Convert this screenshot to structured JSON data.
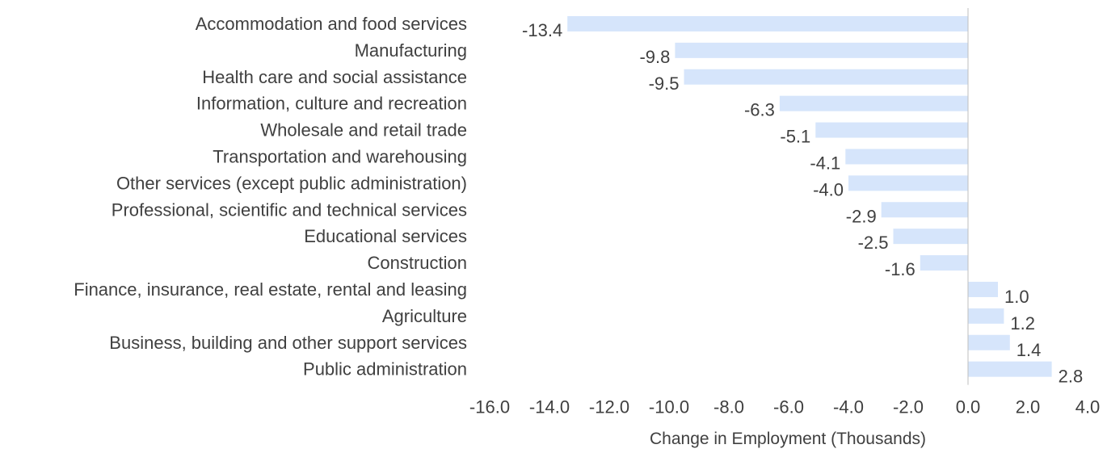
{
  "chart_data": {
    "type": "bar",
    "orientation": "horizontal",
    "categories": [
      "Accommodation and food services",
      "Manufacturing",
      "Health care and social assistance",
      "Information, culture and recreation",
      "Wholesale and retail trade",
      "Transportation and warehousing",
      "Other services (except public administration)",
      "Professional, scientific and technical services",
      "Educational services",
      "Construction",
      "Finance, insurance, real estate, rental and leasing",
      "Agriculture",
      "Business, building and other support services",
      "Public administration"
    ],
    "values": [
      -13.4,
      -9.8,
      -9.5,
      -6.3,
      -5.1,
      -4.1,
      -4.0,
      -2.9,
      -2.5,
      -1.6,
      1.0,
      1.2,
      1.4,
      2.8
    ],
    "value_labels": [
      "-13.4",
      "-9.8",
      "-9.5",
      "-6.3",
      "-5.1",
      "-4.1",
      "-4.0",
      "-2.9",
      "-2.5",
      "-1.6",
      "1.0",
      "1.2",
      "1.4",
      "2.8"
    ],
    "title": "",
    "xlabel": "Change in Employment (Thousands)",
    "ylabel": "",
    "xlim": [
      -16.0,
      4.0
    ],
    "x_ticks": [
      -16.0,
      -14.0,
      -12.0,
      -10.0,
      -8.0,
      -6.0,
      -4.0,
      -2.0,
      0.0,
      2.0,
      4.0
    ],
    "x_tick_labels": [
      "-16.0",
      "-14.0",
      "-12.0",
      "-10.0",
      "-8.0",
      "-6.0",
      "-4.0",
      "-2.0",
      "0.0",
      "2.0",
      "4.0"
    ],
    "grid": false,
    "legend": "none"
  },
  "colors": {
    "bar": "#d6e5fb",
    "text": "#404040",
    "axis": "#bfbfbf"
  }
}
